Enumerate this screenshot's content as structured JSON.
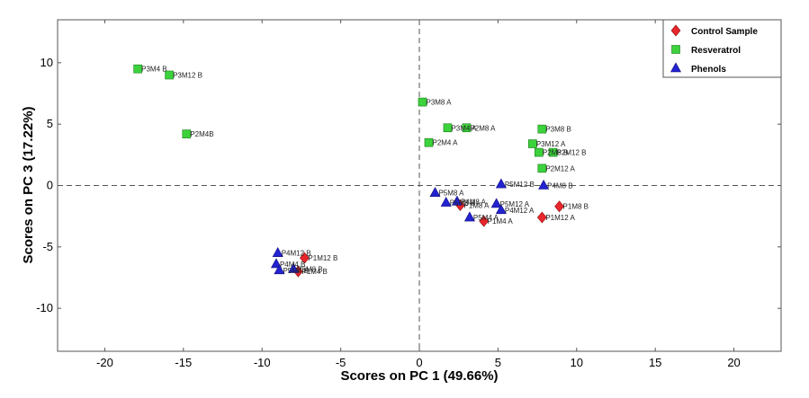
{
  "chart_data": {
    "type": "scatter",
    "xlabel": "Scores on PC 1 (49.66%)",
    "ylabel": "Scores on PC 3 (17.22%)",
    "xlim": [
      -23,
      23
    ],
    "ylim": [
      -13.5,
      13.5
    ],
    "xticks": [
      -20,
      -15,
      -10,
      -5,
      0,
      5,
      10,
      15,
      20
    ],
    "yticks": [
      -10,
      -5,
      0,
      5,
      10
    ],
    "grid": false,
    "zero_lines": "dashed",
    "legend_position": "top-right",
    "series": [
      {
        "name": "Control Sample",
        "marker": "diamond",
        "color": "#e8262b",
        "points": [
          {
            "label": "P1M8 B",
            "x": 8.9,
            "y": -1.7
          },
          {
            "label": "P1M12 A",
            "x": 7.8,
            "y": -2.6
          },
          {
            "label": "P1M4 A",
            "x": 4.1,
            "y": -2.9
          },
          {
            "label": "P1M8 A",
            "x": 2.6,
            "y": -1.6
          },
          {
            "label": "P1M12 B",
            "x": -7.3,
            "y": -5.9
          },
          {
            "label": "P1M4 B",
            "x": -7.7,
            "y": -7.0
          }
        ]
      },
      {
        "name": "Resveratrol",
        "marker": "square",
        "color": "#3cd23c",
        "points": [
          {
            "label": "P3M4 B",
            "x": -17.9,
            "y": 9.5
          },
          {
            "label": "P3M12 B",
            "x": -15.9,
            "y": 9.0
          },
          {
            "label": "P2M4B",
            "x": -14.8,
            "y": 4.2
          },
          {
            "label": "P3M8 A",
            "x": 0.2,
            "y": 6.8
          },
          {
            "label": "P3M4 A",
            "x": 1.8,
            "y": 4.7
          },
          {
            "label": "P2M8 A",
            "x": 3.0,
            "y": 4.7
          },
          {
            "label": "P2M4 A",
            "x": 0.6,
            "y": 3.5
          },
          {
            "label": "P3M8 B",
            "x": 7.8,
            "y": 4.6
          },
          {
            "label": "P3M12 A",
            "x": 7.2,
            "y": 3.4
          },
          {
            "label": "P2M8 B",
            "x": 7.6,
            "y": 2.7
          },
          {
            "label": "P2M12 B",
            "x": 8.5,
            "y": 2.7
          },
          {
            "label": "P2M12 A",
            "x": 7.8,
            "y": 1.4
          }
        ]
      },
      {
        "name": "Phenols",
        "marker": "triangle",
        "color": "#2323d2",
        "points": [
          {
            "label": "P5M12 B",
            "x": 5.2,
            "y": 0.1
          },
          {
            "label": "P4M8 B",
            "x": 7.9,
            "y": 0.0
          },
          {
            "label": "P5M8 A",
            "x": 1.0,
            "y": -0.6
          },
          {
            "label": "P4M8 A",
            "x": 2.4,
            "y": -1.3
          },
          {
            "label": "P5M8 B",
            "x": 1.7,
            "y": -1.4
          },
          {
            "label": "P5M12 A",
            "x": 4.9,
            "y": -1.5
          },
          {
            "label": "P4M12 A",
            "x": 5.2,
            "y": -2.0
          },
          {
            "label": "P5M4 A",
            "x": 3.2,
            "y": -2.6
          },
          {
            "label": "P4M12 B",
            "x": -9.0,
            "y": -5.5
          },
          {
            "label": "P4M4 B",
            "x": -9.1,
            "y": -6.4
          },
          {
            "label": "P5M4 B",
            "x": -8.9,
            "y": -6.9
          },
          {
            "label": "P5M8 B",
            "x": -8.0,
            "y": -6.8
          }
        ]
      }
    ]
  }
}
